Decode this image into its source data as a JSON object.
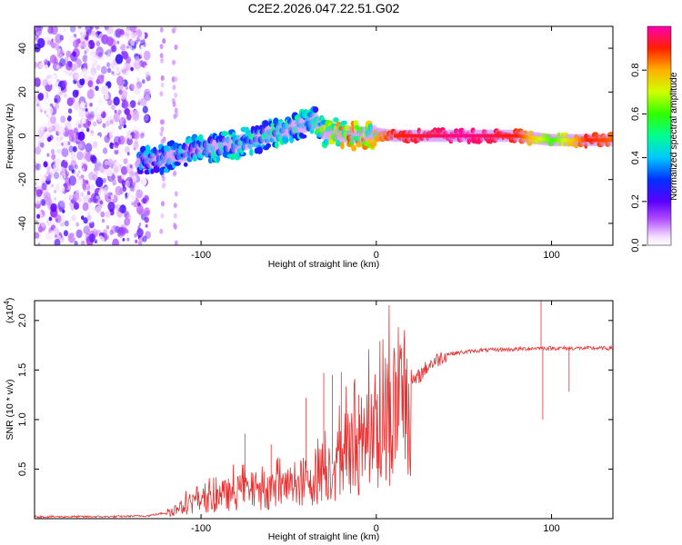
{
  "title": "C2E2.2026.047.22.51.G02",
  "chart_data": [
    {
      "type": "heatmap",
      "name": "spectrogram",
      "xlabel": "Height of straight line (km)",
      "ylabel": "Frequency (Hz)",
      "xlim": [
        -195,
        135
      ],
      "ylim": [
        -50,
        50
      ],
      "x_ticks": [
        -100,
        0,
        100
      ],
      "x_tick_labels": [
        "-100",
        "0",
        "100"
      ],
      "y_ticks": [
        -40,
        -20,
        0,
        20,
        40
      ],
      "y_tick_labels": [
        "-40",
        "-20",
        "0",
        "20",
        "40"
      ],
      "noise_region_km": [
        -195,
        -130
      ],
      "faint_noise_columns_km": [
        -122,
        -115
      ],
      "ridge": {
        "x": [
          -135,
          -120,
          -100,
          -80,
          -60,
          -45,
          -35,
          -30,
          -20,
          -10,
          0,
          10,
          50,
          80,
          90,
          100,
          120,
          135
        ],
        "freq_hz": [
          -11,
          -10,
          -6,
          -4,
          1,
          4,
          7,
          2,
          1,
          0,
          1,
          0,
          0,
          0,
          -1,
          -2,
          -2,
          -2
        ],
        "amplitude": [
          0.35,
          0.35,
          0.4,
          0.45,
          0.45,
          0.45,
          0.45,
          0.65,
          0.75,
          0.8,
          0.8,
          0.9,
          0.98,
          0.9,
          0.75,
          0.6,
          0.9,
          0.85
        ]
      },
      "colorbar": {
        "label": "Normalized spectral amplitude",
        "range": [
          0,
          1
        ],
        "ticks": [
          0.0,
          0.2,
          0.4,
          0.6,
          0.8
        ],
        "tick_labels": [
          "0.0",
          "0.2",
          "0.4",
          "0.6",
          "0.8"
        ]
      }
    },
    {
      "type": "line",
      "name": "snr",
      "xlabel": "Height of straight line (km)",
      "ylabel": "SNR (10 * v/v)",
      "scale_label": "(x10",
      "scale_exp": "4",
      "xlim": [
        -195,
        135
      ],
      "ylim": [
        0,
        2.2
      ],
      "x_ticks": [
        -100,
        0,
        100
      ],
      "x_tick_labels": [
        "-100",
        "0",
        "100"
      ],
      "y_ticks": [
        0.5,
        1.0,
        1.5,
        2.0
      ],
      "y_tick_labels": [
        "0.5",
        "1.0",
        "1.5",
        "2.0"
      ],
      "line_color": "#e83030",
      "series": {
        "name": "SNR",
        "x_km": [
          -195,
          -150,
          -130,
          -120,
          -110,
          -100,
          -90,
          -80,
          -70,
          -60,
          -50,
          -40,
          -30,
          -20,
          -10,
          0,
          10,
          20,
          30,
          40,
          60,
          80,
          90,
          95,
          100,
          110,
          120,
          135
        ],
        "snr_x1e4": [
          0.02,
          0.02,
          0.03,
          0.06,
          0.12,
          0.18,
          0.22,
          0.26,
          0.28,
          0.3,
          0.32,
          0.38,
          0.48,
          0.62,
          0.75,
          0.9,
          1.1,
          1.35,
          1.55,
          1.66,
          1.7,
          1.71,
          1.72,
          1.72,
          1.72,
          1.72,
          1.72,
          1.72
        ],
        "spikes": [
          {
            "x_km": -75,
            "value": 0.86
          },
          {
            "x_km": -60,
            "value": 0.75
          },
          {
            "x_km": -40,
            "value": 1.22
          },
          {
            "x_km": -30,
            "value": 1.47
          },
          {
            "x_km": -25,
            "value": 1.45
          },
          {
            "x_km": -20,
            "value": 1.48
          },
          {
            "x_km": -10,
            "value": 1.25
          },
          {
            "x_km": 94,
            "value": 2.2
          },
          {
            "x_km": 95,
            "value": 1.0
          },
          {
            "x_km": 110,
            "value": 1.28
          }
        ]
      }
    }
  ]
}
